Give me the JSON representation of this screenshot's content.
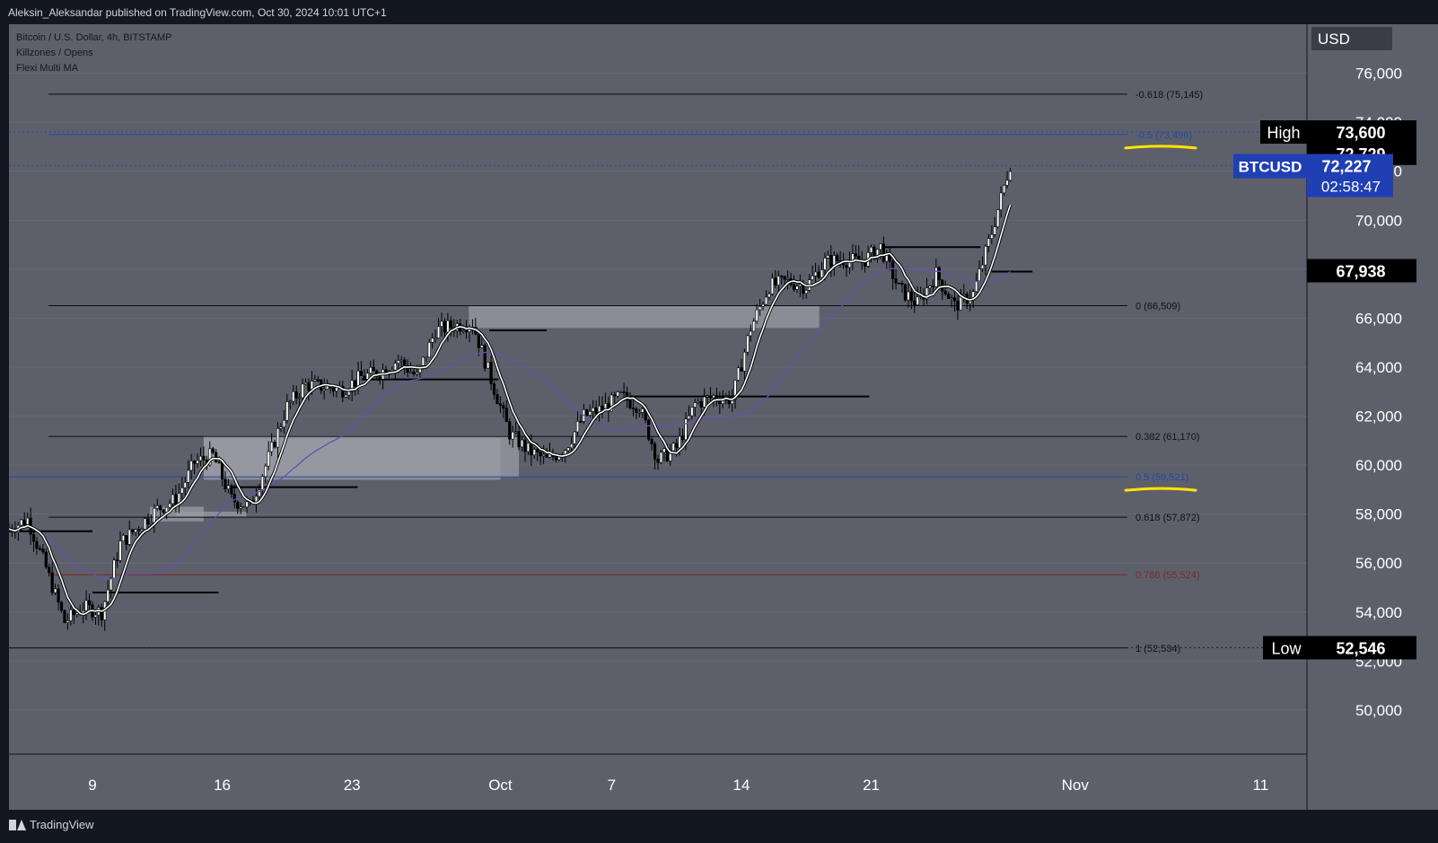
{
  "header": {
    "published_by": "Aleksin_Aleksandar published on TradingView.com, Oct 30, 2024 10:01 UTC+1"
  },
  "legend": {
    "symbol": "Bitcoin / U.S. Dollar, 4h, BITSTAMP",
    "indicator1": "Killzones / Opens",
    "indicator2": "Flexi Multi MA"
  },
  "footer": {
    "logo_text": "TradingView"
  },
  "colors": {
    "pane_bg": "#5d606b",
    "axis_bg": "#5d606b",
    "axis_text": "#ffffff",
    "grid": "#6b6e79",
    "candle": "#000000",
    "ma_fast": "#ffffff",
    "ma_slow": "#6a4fa8",
    "zone": "#9a9ca4",
    "fib_black": "#0c0c0c",
    "fib_blue": "#2547a8",
    "fib_red": "#7a2a2a",
    "highlight": "#ffe600",
    "price_badge": "#1f3fb3"
  },
  "chart_data": {
    "type": "candlestick",
    "title": "Bitcoin / U.S. Dollar, 4h, BITSTAMP",
    "currency": "USD",
    "ylim": [
      48200,
      78000
    ],
    "y_ticks": [
      "50,000",
      "52,000",
      "54,000",
      "56,000",
      "58,000",
      "60,000",
      "62,000",
      "64,000",
      "66,000",
      "68,000",
      "70,000",
      "72,000",
      "74,000",
      "76,000"
    ],
    "x_ticks": [
      {
        "label": "9",
        "day": 9
      },
      {
        "label": "16",
        "day": 16
      },
      {
        "label": "23",
        "day": 23
      },
      {
        "label": "Oct",
        "day": 31
      },
      {
        "label": "7",
        "day": 37
      },
      {
        "label": "14",
        "day": 44
      },
      {
        "label": "21",
        "day": 51
      },
      {
        "label": "Nov",
        "day": 62
      },
      {
        "label": "11",
        "day": 72
      }
    ],
    "x_range_days": [
      4.5,
      74.5
    ],
    "day_reference": "days counted from Sep 1, 2024",
    "price_path_daily_close": [
      [
        4.5,
        57400
      ],
      [
        5.5,
        57800
      ],
      [
        6.5,
        55800
      ],
      [
        7.5,
        53600
      ],
      [
        8.5,
        54200
      ],
      [
        9.5,
        54000
      ],
      [
        10.5,
        56800
      ],
      [
        11.5,
        57500
      ],
      [
        12.5,
        58200
      ],
      [
        13.5,
        58600
      ],
      [
        14.5,
        60100
      ],
      [
        15.5,
        60400
      ],
      [
        16.5,
        58600
      ],
      [
        17.5,
        58300
      ],
      [
        18.5,
        60300
      ],
      [
        19.5,
        62400
      ],
      [
        20.5,
        63300
      ],
      [
        21.5,
        63200
      ],
      [
        22.5,
        63100
      ],
      [
        23.5,
        63600
      ],
      [
        24.5,
        63800
      ],
      [
        25.5,
        64300
      ],
      [
        26.5,
        63600
      ],
      [
        27.5,
        65500
      ],
      [
        28.5,
        65700
      ],
      [
        29.5,
        65800
      ],
      [
        30.5,
        63500
      ],
      [
        31.5,
        61300
      ],
      [
        32.5,
        60600
      ],
      [
        33.5,
        60200
      ],
      [
        34.5,
        60700
      ],
      [
        35.5,
        62000
      ],
      [
        36.5,
        62300
      ],
      [
        37.5,
        62800
      ],
      [
        38.5,
        62400
      ],
      [
        39.5,
        60200
      ],
      [
        40.5,
        60700
      ],
      [
        41.5,
        62500
      ],
      [
        42.5,
        62800
      ],
      [
        43.5,
        62700
      ],
      [
        44.5,
        65600
      ],
      [
        45.5,
        67300
      ],
      [
        46.5,
        67500
      ],
      [
        47.5,
        67300
      ],
      [
        48.5,
        68300
      ],
      [
        49.5,
        68400
      ],
      [
        50.5,
        68300
      ],
      [
        51.5,
        68900
      ],
      [
        52.5,
        67200
      ],
      [
        53.5,
        66600
      ],
      [
        54.5,
        67800
      ],
      [
        55.5,
        66500
      ],
      [
        56.5,
        67000
      ],
      [
        57.5,
        69500
      ],
      [
        58.5,
        72300
      ]
    ],
    "series": [
      {
        "name": "BTCUSD",
        "type": "candlestick"
      },
      {
        "name": "Flexi Multi MA",
        "type": "line"
      }
    ],
    "annotations": {
      "high": {
        "label": "High",
        "value": "73,600",
        "y": 73600
      },
      "low": {
        "label": "Low",
        "value": "52,546",
        "y": 52546
      },
      "last_high_level": {
        "value": "72,729",
        "y": 72729
      },
      "current_price": {
        "symbol": "BTCUSD",
        "value": "72,227",
        "countdown": "02:58:47",
        "y": 72227
      },
      "level_67938": {
        "value": "67,938",
        "y": 67938
      }
    },
    "fib_levels": [
      {
        "ratio": "-0.618",
        "label": "-0.618 (75,145)",
        "y": 75145,
        "color": "black"
      },
      {
        "ratio": "-0.5",
        "label": "-0.5 (73,496)",
        "y": 73496,
        "color": "blue",
        "highlighted": true
      },
      {
        "ratio": "0",
        "label": "0 (66,509)",
        "y": 66509,
        "color": "black"
      },
      {
        "ratio": "0.382",
        "label": "0.382 (61,170)",
        "y": 61170,
        "color": "black"
      },
      {
        "ratio": "0.5",
        "label": "0.5 (59,521)",
        "y": 59521,
        "color": "blue",
        "highlighted": true
      },
      {
        "ratio": "0.618",
        "label": "0.618 (57,872)",
        "y": 57872,
        "color": "black"
      },
      {
        "ratio": "0.786",
        "label": "0.786 (55,524)",
        "y": 55524,
        "color": "red"
      },
      {
        "ratio": "1",
        "label": "1 (52,534)",
        "y": 52534,
        "color": "black"
      }
    ],
    "zones": [
      {
        "x0": 13.5,
        "x1": 17.3,
        "y0": 57900,
        "y1": 58100
      },
      {
        "x0": 12.1,
        "x1": 15.0,
        "y0": 57700,
        "y1": 58300
      },
      {
        "x0": 15.0,
        "x1": 32.0,
        "y0": 59500,
        "y1": 61200
      },
      {
        "x0": 29.3,
        "x1": 48.2,
        "y0": 65600,
        "y1": 66500
      },
      {
        "x0": 15.0,
        "x1": 31.0,
        "y0": 59400,
        "y1": 61100
      }
    ],
    "horizontal_levels": [
      {
        "x0": 4.5,
        "x1": 9.0,
        "y": 57300
      },
      {
        "x0": 9.0,
        "x1": 15.8,
        "y": 54800
      },
      {
        "x0": 16.5,
        "x1": 23.3,
        "y": 59100
      },
      {
        "x0": 23.5,
        "x1": 30.9,
        "y": 63500
      },
      {
        "x0": 30.4,
        "x1": 33.5,
        "y": 65500
      },
      {
        "x0": 38.0,
        "x1": 50.9,
        "y": 62800
      },
      {
        "x0": 51.5,
        "x1": 56.9,
        "y": 68900
      },
      {
        "x0": 57.5,
        "x1": 59.7,
        "y": 67900
      }
    ],
    "grid": true
  }
}
